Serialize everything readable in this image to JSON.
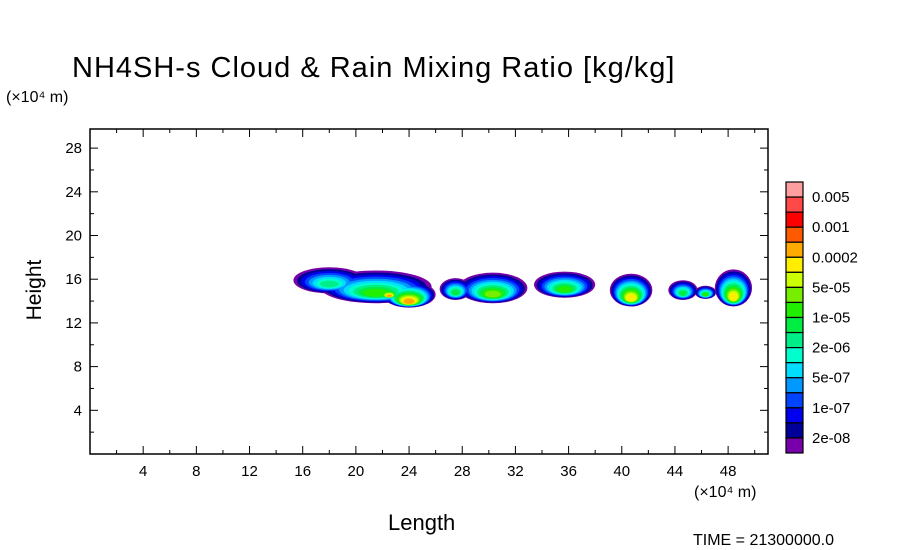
{
  "chart_data": {
    "type": "heatmap",
    "title": "NH4SH-s Cloud & Rain Mixing Ratio [kg/kg]",
    "xlabel": "Length",
    "ylabel": "Height",
    "x_unit": "(×10⁴ m)",
    "y_unit": "(×10⁴ m)",
    "xlim": [
      0,
      51
    ],
    "ylim": [
      0,
      29.75
    ],
    "x_ticks": [
      4,
      8,
      12,
      16,
      20,
      24,
      28,
      32,
      36,
      40,
      44,
      48
    ],
    "y_ticks": [
      4,
      8,
      12,
      16,
      20,
      24,
      28
    ],
    "grid": false,
    "colorbar": {
      "labels": [
        "0.005",
        "0.001",
        "0.0002",
        "5e-05",
        "1e-05",
        "2e-06",
        "5e-07",
        "1e-07",
        "2e-08"
      ],
      "colors": [
        "#ff9e9e",
        "#ff4848",
        "#ff0000",
        "#ff5a00",
        "#ffaa00",
        "#ffee00",
        "#ccff00",
        "#77ee00",
        "#22ee00",
        "#00ee44",
        "#00ee88",
        "#00ffcc",
        "#00ddff",
        "#0099ff",
        "#0044ff",
        "#0000ee",
        "#000099",
        "#7700aa"
      ]
    },
    "cells": [
      {
        "x": 18.0,
        "z": 15.9,
        "rx": 2.7,
        "rz": 1.2,
        "peak_level": 7
      },
      {
        "x": 21.5,
        "z": 15.3,
        "rx": 4.2,
        "rz": 1.5,
        "peak_level": 9
      },
      {
        "x": 24.0,
        "z": 14.6,
        "rx": 2.0,
        "rz": 1.2,
        "peak_level": 13
      },
      {
        "x": 22.5,
        "z": 14.8,
        "rx": 1.0,
        "rz": 0.6,
        "peak_level": 13
      },
      {
        "x": 27.5,
        "z": 15.1,
        "rx": 1.2,
        "rz": 1.0,
        "peak_level": 8
      },
      {
        "x": 30.3,
        "z": 15.2,
        "rx": 2.6,
        "rz": 1.4,
        "peak_level": 10
      },
      {
        "x": 35.7,
        "z": 15.5,
        "rx": 2.3,
        "rz": 1.2,
        "peak_level": 9
      },
      {
        "x": 40.7,
        "z": 15.0,
        "rx": 1.6,
        "rz": 1.5,
        "peak_level": 12
      },
      {
        "x": 44.6,
        "z": 15.0,
        "rx": 1.1,
        "rz": 0.9,
        "peak_level": 8
      },
      {
        "x": 46.3,
        "z": 14.8,
        "rx": 0.8,
        "rz": 0.6,
        "peak_level": 9
      },
      {
        "x": 48.4,
        "z": 15.2,
        "rx": 1.4,
        "rz": 1.7,
        "peak_level": 12
      }
    ]
  },
  "footer": {
    "time_text": "TIME =  21300000.0"
  }
}
